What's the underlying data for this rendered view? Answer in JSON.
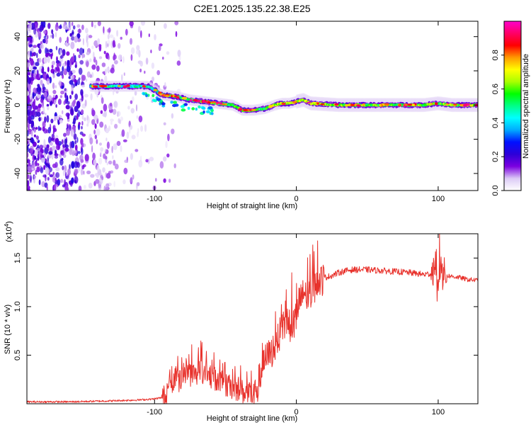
{
  "title": "C2E1.2025.135.22.38.E25",
  "chart_data": [
    {
      "type": "heatmap",
      "xlabel": "Height of straight line (km)",
      "ylabel": "Frequency (Hz)",
      "xlim": [
        -190,
        128
      ],
      "ylim": [
        -50,
        49
      ],
      "x_ticks": [
        -100,
        0,
        100
      ],
      "y_ticks": [
        -40,
        -20,
        0,
        20,
        40
      ],
      "colorbar": {
        "label": "Normalized spectral amplitude",
        "range": [
          0,
          1
        ],
        "ticks": [
          0.0,
          0.2,
          0.4,
          0.6,
          0.8
        ],
        "colormap": [
          "#ffffff",
          "#dccbf6",
          "#7b00e0",
          "#2e00d8",
          "#0010ff",
          "#00aaff",
          "#00ffff",
          "#00ff88",
          "#00ff00",
          "#aaff00",
          "#ffff00",
          "#ff9900",
          "#ff0000",
          "#ff0066",
          "#ff00cc"
        ]
      },
      "ridge": {
        "x": [
          -145,
          -130,
          -115,
          -105,
          -100,
          -95,
          -85,
          -75,
          -65,
          -55,
          -45,
          -38,
          -30,
          -22,
          -15,
          -10,
          -5,
          0,
          5,
          10,
          30,
          60,
          90,
          100,
          110,
          128
        ],
        "y": [
          11,
          11,
          11,
          11,
          9,
          6,
          5,
          3,
          2,
          1,
          0,
          -3,
          -3,
          -2,
          0,
          1,
          1,
          2,
          3,
          1,
          0,
          0,
          0,
          1,
          0,
          0
        ]
      }
    },
    {
      "type": "line",
      "xlabel": "Height of straight line (km)",
      "ylabel": "SNR (10 * v/v)",
      "y_multiplier": "(x10",
      "y_multiplier_exp": "4",
      "xlim": [
        -190,
        128
      ],
      "ylim": [
        0,
        1.75
      ],
      "x_ticks": [
        -100,
        0,
        100
      ],
      "y_ticks": [
        0.5,
        1.0,
        1.5
      ],
      "y_tick_labels": [
        "0.5",
        "1.0",
        "1.5"
      ],
      "line_color": "#e8322c",
      "series": [
        {
          "x": [
            -190,
            -160,
            -130,
            -110,
            -100,
            -92,
            -88,
            -85,
            -80,
            -75,
            -70,
            -65,
            -60,
            -55,
            -50,
            -45,
            -40,
            -35,
            -30,
            -26,
            -22,
            -18,
            -15,
            -12,
            -8,
            -5,
            0,
            2,
            5,
            8,
            10,
            12,
            15,
            20,
            25,
            30,
            35,
            40,
            50,
            60,
            70,
            80,
            90,
            95,
            98,
            100,
            101,
            103,
            106,
            110,
            115,
            120,
            128
          ],
          "y": [
            0.02,
            0.02,
            0.03,
            0.04,
            0.05,
            0.07,
            0.15,
            0.22,
            0.27,
            0.3,
            0.32,
            0.3,
            0.28,
            0.24,
            0.18,
            0.17,
            0.14,
            0.1,
            0.08,
            0.25,
            0.45,
            0.52,
            0.6,
            0.7,
            0.82,
            0.8,
            0.85,
            1.05,
            1.12,
            1.1,
            1.12,
            1.2,
            1.25,
            1.3,
            1.32,
            1.35,
            1.37,
            1.38,
            1.38,
            1.37,
            1.36,
            1.35,
            1.33,
            1.34,
            1.45,
            1.05,
            1.4,
            1.34,
            1.32,
            1.31,
            1.3,
            1.28,
            1.27
          ]
        }
      ]
    }
  ]
}
